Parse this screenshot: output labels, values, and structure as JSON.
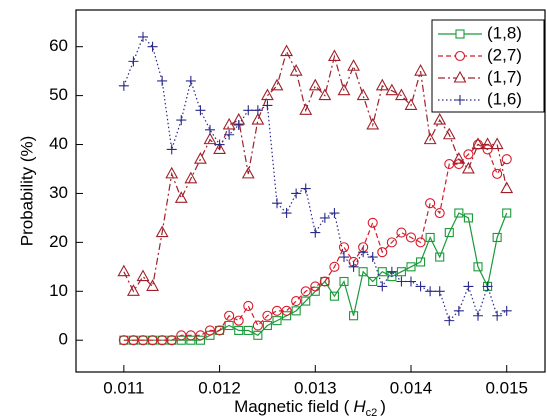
{
  "chart_data": {
    "type": "line",
    "ylabel": "Probability (%)",
    "xlabel": {
      "text": "Magnetic field (",
      "var": "H",
      "sub": "c2",
      "end": ")"
    },
    "x": [
      0.011,
      0.0111,
      0.0112,
      0.0113,
      0.0114,
      0.0115,
      0.0116,
      0.0117,
      0.0118,
      0.0119,
      0.012,
      0.0121,
      0.0122,
      0.0123,
      0.0124,
      0.0125,
      0.0126,
      0.0127,
      0.0128,
      0.0129,
      0.013,
      0.0131,
      0.0132,
      0.0133,
      0.0134,
      0.0135,
      0.0136,
      0.0137,
      0.0138,
      0.0139,
      0.014,
      0.0141,
      0.0142,
      0.0143,
      0.0144,
      0.0145,
      0.0146,
      0.0147,
      0.0148,
      0.0149,
      0.015
    ],
    "series": [
      {
        "name": "(1,8)",
        "color": "#1a9a3a",
        "marker": "square",
        "dash": "solid",
        "values": [
          0,
          0,
          0,
          0,
          0,
          0,
          0,
          0,
          0,
          1,
          2,
          3,
          2,
          2,
          1,
          3,
          4,
          5,
          6,
          8,
          10,
          12,
          9,
          12,
          5,
          14,
          12,
          14,
          13,
          14,
          15,
          16,
          21,
          17,
          22,
          26,
          25,
          15,
          11,
          21,
          26
        ]
      },
      {
        "name": "(2,7)",
        "color": "#d81a2a",
        "marker": "circle",
        "dash": "dashed",
        "values": [
          0,
          0,
          0,
          0,
          0,
          0,
          1,
          1,
          1,
          2,
          2,
          5,
          4,
          7,
          3,
          5,
          6,
          6,
          8,
          10,
          11,
          12,
          15,
          19,
          16,
          19,
          24,
          18,
          20,
          22,
          21,
          20,
          28,
          26,
          36,
          36,
          38,
          40,
          39,
          34,
          37
        ]
      },
      {
        "name": "(1,7)",
        "color": "#a0202a",
        "marker": "triangle",
        "dash": "dashdot",
        "values": [
          14,
          10,
          13,
          11,
          22,
          34,
          29,
          33,
          37,
          41,
          39,
          44,
          45,
          34,
          45,
          50,
          52,
          59,
          55,
          47,
          52,
          50,
          58,
          51,
          56,
          50,
          44,
          52,
          51,
          50,
          48,
          55,
          41,
          45,
          42,
          37,
          35,
          40,
          40,
          40,
          31
        ]
      },
      {
        "name": "(1,6)",
        "color": "#2a2a8a",
        "marker": "plus",
        "dash": "dotted",
        "values": [
          52,
          57,
          62,
          60,
          53,
          39,
          45,
          53,
          47,
          43,
          40,
          42,
          44,
          47,
          47,
          48,
          28,
          26,
          30,
          31,
          22,
          25,
          26,
          17,
          15,
          18,
          17,
          11,
          14,
          12,
          12,
          11,
          10,
          10,
          4,
          6,
          11,
          5,
          11,
          5,
          6
        ]
      }
    ],
    "xlim": [
      0.0105,
      0.0154
    ],
    "xticks": [
      0.011,
      0.012,
      0.013,
      0.014,
      0.015
    ],
    "ylim": [
      -6.5,
      67.5
    ],
    "yticks": [
      0,
      10,
      20,
      30,
      40,
      50,
      60
    ],
    "legend": "top-right"
  }
}
